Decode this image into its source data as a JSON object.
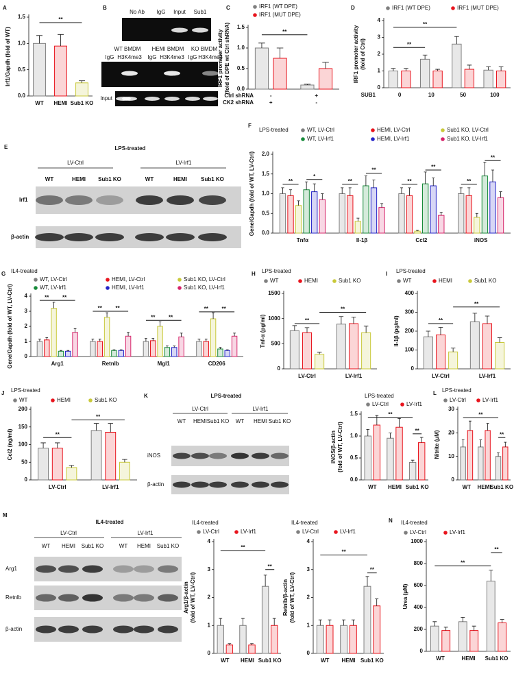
{
  "chart_data": [
    {
      "type": "bar",
      "panel": "A",
      "ylabel": [
        "Irf1/Gapdh (fold of WT)"
      ],
      "categories": [
        "WT",
        "HEMI",
        "Sub1 KO"
      ],
      "values": [
        1.0,
        0.95,
        0.25
      ],
      "errors": [
        0.15,
        0.22,
        0.04
      ],
      "colors": [
        "#7f7f7f",
        "#e8141d",
        "#c9c93a"
      ],
      "ylim": [
        0,
        1.5
      ],
      "yticks": [
        {
          "value": 0,
          "label": "0.0"
        },
        0.5,
        {
          "value": 1,
          "label": "1.0"
        },
        1.5
      ],
      "annotations": [
        "**"
      ]
    },
    {
      "type": "bar",
      "panel": "C",
      "ylabel": [
        "IRF1 promoter activity",
        "(fold of DPE wt Ctrl shRNA)"
      ],
      "categories": [
        null,
        null
      ],
      "x_rows": [
        {
          "label": "Ctrl shRNA",
          "marks": [
            "-",
            "+"
          ]
        },
        {
          "label": "CK2 shRNA",
          "marks": [
            "+",
            "-"
          ]
        }
      ],
      "series": [
        {
          "name": "IRF1 (WT DPE)",
          "color": "#7f7f7f",
          "values": [
            1.0,
            0.1
          ],
          "errors": [
            0.12,
            0.02
          ]
        },
        {
          "name": "IRF1 (MUT DPE)",
          "color": "#e8141d",
          "values": [
            0.75,
            0.5
          ],
          "errors": [
            0.25,
            0.15
          ]
        }
      ],
      "ylim": [
        0,
        1.5
      ],
      "yticks": [
        {
          "value": 0,
          "label": "0.0"
        },
        0.5,
        {
          "value": 1,
          "label": "1.0"
        },
        1.5
      ],
      "annotations": [
        "**"
      ]
    },
    {
      "type": "bar",
      "panel": "D",
      "ylabel": [
        "IRF1 promoter activity",
        "(fold of Ctrl)"
      ],
      "xlabel": "SUB1",
      "categories": [
        "0",
        "10",
        "50",
        "100"
      ],
      "series": [
        {
          "name": "IRF1 (WT DPE)",
          "color": "#7f7f7f",
          "values": [
            1.0,
            1.7,
            2.6,
            1.05
          ],
          "errors": [
            0.15,
            0.25,
            0.45,
            0.2
          ]
        },
        {
          "name": "IRF1 (MUT DPE)",
          "color": "#e8141d",
          "values": [
            1.0,
            1.0,
            1.1,
            1.0
          ],
          "errors": [
            0.15,
            0.1,
            0.25,
            0.25
          ]
        }
      ],
      "ylim": [
        0,
        4
      ],
      "yticks": [
        0,
        1,
        2,
        3,
        4
      ],
      "annotations": [
        "**",
        "**"
      ]
    },
    {
      "type": "bar",
      "panel": "F",
      "title": "LPS-treated",
      "ylabel": [
        "Gene/Gapdh (fold of WT, LV-Ctrl)"
      ],
      "categories": [
        "Tnfα",
        "Il-1β",
        "Ccl2",
        "iNOS"
      ],
      "series": [
        {
          "name": "WT, LV-Ctrl",
          "color": "#7f7f7f",
          "values": [
            1.0,
            1.0,
            1.0,
            1.0
          ],
          "errors": [
            0.15,
            0.15,
            0.15,
            0.15
          ]
        },
        {
          "name": "HEMI, LV-Ctrl",
          "color": "#e8141d",
          "values": [
            0.95,
            0.95,
            0.95,
            0.95
          ],
          "errors": [
            0.15,
            0.2,
            0.2,
            0.2
          ]
        },
        {
          "name": "Sub1 KO, LV-Ctrl",
          "color": "#c9c93a",
          "values": [
            0.7,
            0.3,
            0.05,
            0.4
          ],
          "errors": [
            0.12,
            0.08,
            0.02,
            0.1
          ]
        },
        {
          "name": "WT, LV-Irf1",
          "color": "#178a3a",
          "values": [
            1.1,
            1.2,
            1.25,
            1.45
          ],
          "errors": [
            0.2,
            0.25,
            0.3,
            0.35
          ]
        },
        {
          "name": "HEMI, LV-Irf1",
          "color": "#2424c8",
          "values": [
            1.05,
            1.15,
            1.2,
            1.3
          ],
          "errors": [
            0.2,
            0.2,
            0.2,
            0.3
          ]
        },
        {
          "name": "Sub1 KO, LV-Irf1",
          "color": "#d6246a",
          "values": [
            0.85,
            0.65,
            0.45,
            0.9
          ],
          "errors": [
            0.15,
            0.1,
            0.08,
            0.15
          ]
        }
      ],
      "ylim": [
        0,
        2
      ],
      "yticks": [
        {
          "value": 0,
          "label": "0.0"
        },
        0.5,
        {
          "value": 1,
          "label": "1.0"
        },
        1.5,
        {
          "value": 2,
          "label": "2.0"
        }
      ],
      "annotations": [
        "**",
        "*",
        "**",
        "**",
        "**",
        "**",
        "**",
        "**"
      ]
    },
    {
      "type": "bar",
      "panel": "G",
      "title": "IL4-treated",
      "ylabel": [
        "Gene/Gapdh (fold of WT, LV-Ctrl)"
      ],
      "categories": [
        "Arg1",
        "Retnlb",
        "Mgl1",
        "CD206"
      ],
      "series": [
        {
          "name": "WT, LV-Ctrl",
          "color": "#7f7f7f",
          "values": [
            1.0,
            1.0,
            1.0,
            1.0
          ],
          "errors": [
            0.15,
            0.15,
            0.2,
            0.15
          ]
        },
        {
          "name": "HEMI, LV-Ctrl",
          "color": "#e8141d",
          "values": [
            1.1,
            1.0,
            1.05,
            1.0
          ],
          "errors": [
            0.15,
            0.15,
            0.15,
            0.15
          ]
        },
        {
          "name": "Sub1 KO, LV-Ctrl",
          "color": "#c9c93a",
          "values": [
            3.2,
            2.6,
            2.0,
            2.5
          ],
          "errors": [
            0.4,
            0.3,
            0.3,
            0.4
          ]
        },
        {
          "name": "WT, LV-Irf1",
          "color": "#178a3a",
          "values": [
            0.35,
            0.4,
            0.6,
            0.5
          ],
          "errors": [
            0.05,
            0.05,
            0.1,
            0.1
          ]
        },
        {
          "name": "HEMI, LV-Irf1",
          "color": "#2424c8",
          "values": [
            0.35,
            0.4,
            0.6,
            0.4
          ],
          "errors": [
            0.05,
            0.05,
            0.1,
            0.05
          ]
        },
        {
          "name": "Sub1 KO, LV-Irf1",
          "color": "#d6246a",
          "values": [
            1.6,
            1.35,
            1.3,
            1.35
          ],
          "errors": [
            0.25,
            0.25,
            0.25,
            0.2
          ]
        }
      ],
      "ylim": [
        0,
        4
      ],
      "yticks": [
        0,
        1,
        2,
        3,
        4
      ],
      "annotations": [
        "**",
        "**",
        "**",
        "**",
        "**",
        "**",
        "**",
        "**"
      ]
    },
    {
      "type": "bar",
      "panel": "H",
      "title": "LPS-treated",
      "ylabel": [
        "Tnf-α (pg/ml)"
      ],
      "categories": [
        "LV-Ctrl",
        "LV-Irf1"
      ],
      "series": [
        {
          "name": "WT",
          "color": "#7f7f7f",
          "values": [
            760,
            890
          ],
          "errors": [
            100,
            150
          ]
        },
        {
          "name": "HEMI",
          "color": "#e8141d",
          "values": [
            720,
            900
          ],
          "errors": [
            100,
            130
          ]
        },
        {
          "name": "Sub1 KO",
          "color": "#c9c93a",
          "values": [
            290,
            720
          ],
          "errors": [
            40,
            130
          ]
        }
      ],
      "ylim": [
        0,
        1500
      ],
      "yticks": [
        0,
        500,
        1000,
        1500
      ],
      "annotations": [
        "**",
        "**"
      ]
    },
    {
      "type": "bar",
      "panel": "I",
      "title": "LPS-treated",
      "ylabel": [
        "Il-1β (pg/ml)"
      ],
      "categories": [
        "LV-Ctrl",
        "LV-Irf1"
      ],
      "series": [
        {
          "name": "WT",
          "color": "#7f7f7f",
          "values": [
            170,
            250
          ],
          "errors": [
            30,
            45
          ]
        },
        {
          "name": "HEMI",
          "color": "#e8141d",
          "values": [
            180,
            240
          ],
          "errors": [
            40,
            40
          ]
        },
        {
          "name": "Sub1 KO",
          "color": "#c9c93a",
          "values": [
            90,
            140
          ],
          "errors": [
            20,
            25
          ]
        }
      ],
      "ylim": [
        0,
        400
      ],
      "yticks": [
        0,
        100,
        200,
        300,
        400
      ],
      "annotations": [
        "**",
        "**"
      ]
    },
    {
      "type": "bar",
      "panel": "J",
      "title": "LPS-treated",
      "ylabel": [
        "Ccl2 (ng/ml)"
      ],
      "categories": [
        "LV-Ctrl",
        "LV-Irf1"
      ],
      "series": [
        {
          "name": "WT",
          "color": "#7f7f7f",
          "values": [
            90,
            140
          ],
          "errors": [
            15,
            20
          ]
        },
        {
          "name": "HEMI",
          "color": "#e8141d",
          "values": [
            90,
            135
          ],
          "errors": [
            15,
            25
          ]
        },
        {
          "name": "Sub1 KO",
          "color": "#c9c93a",
          "values": [
            35,
            50
          ],
          "errors": [
            6,
            8
          ]
        }
      ],
      "ylim": [
        0,
        200
      ],
      "yticks": [
        0,
        50,
        100,
        150,
        200
      ],
      "annotations": [
        "**",
        "**"
      ]
    },
    {
      "type": "bar",
      "title": "LPS-treated",
      "ylabel": [
        "iNOS/β-actin",
        "(fold of WT, LV-Ctrl)"
      ],
      "categories": [
        "WT",
        "HEMI",
        "Sub1 KO"
      ],
      "series": [
        {
          "name": "LV-Ctrl",
          "color": "#7f7f7f",
          "values": [
            1.0,
            0.95,
            0.4
          ],
          "errors": [
            0.15,
            0.12,
            0.05
          ]
        },
        {
          "name": "LV-Irf1",
          "color": "#e8141d",
          "values": [
            1.25,
            1.2,
            0.85
          ],
          "errors": [
            0.22,
            0.2,
            0.12
          ]
        }
      ],
      "ylim": [
        0,
        1.5
      ],
      "yticks": [
        {
          "value": 0,
          "label": "0.0"
        },
        0.5,
        {
          "value": 1,
          "label": "1.0"
        },
        1.5
      ],
      "annotations": [
        "**",
        "**"
      ]
    },
    {
      "type": "bar",
      "panel": "L",
      "title": "LPS-treated",
      "ylabel": [
        "Nitrite (μM)"
      ],
      "categories": [
        "WT",
        "HEMI",
        "Sub1 KO"
      ],
      "series": [
        {
          "name": "LV-Ctrl",
          "color": "#7f7f7f",
          "values": [
            14,
            14,
            10
          ],
          "errors": [
            3,
            3,
            1.5
          ]
        },
        {
          "name": "LV-Irf1",
          "color": "#e8141d",
          "values": [
            21,
            21,
            14
          ],
          "errors": [
            4,
            3,
            2
          ]
        }
      ],
      "ylim": [
        0,
        30
      ],
      "yticks": [
        0,
        10,
        20,
        30
      ],
      "annotations": [
        "**",
        "**"
      ]
    },
    {
      "type": "bar",
      "title": "IL4-treated",
      "ylabel": [
        "Arg1/β-actin",
        "(fold of WT, LV-Ctrl)"
      ],
      "categories": [
        "WT",
        "HEMI",
        "Sub1 KO"
      ],
      "series": [
        {
          "name": "LV-Ctrl",
          "color": "#7f7f7f",
          "values": [
            1.0,
            1.0,
            2.4
          ],
          "errors": [
            0.25,
            0.25,
            0.4
          ]
        },
        {
          "name": "LV-Irf1",
          "color": "#e8141d",
          "values": [
            0.3,
            0.3,
            1.0
          ],
          "errors": [
            0.05,
            0.05,
            0.25
          ]
        }
      ],
      "ylim": [
        0,
        4
      ],
      "yticks": [
        0,
        1,
        2,
        3,
        4
      ],
      "annotations": [
        "**",
        "**"
      ]
    },
    {
      "type": "bar",
      "title": "IL4-treated",
      "ylabel": [
        "Retnlb/β-actin",
        "(fold of WT, LV-Ctrl)"
      ],
      "categories": [
        "WT",
        "HEMI",
        "Sub1 KO"
      ],
      "series": [
        {
          "name": "LV-Ctrl",
          "color": "#7f7f7f",
          "values": [
            1.0,
            1.0,
            2.4
          ],
          "errors": [
            0.2,
            0.2,
            0.35
          ]
        },
        {
          "name": "LV-Irf1",
          "color": "#e8141d",
          "values": [
            1.0,
            1.0,
            1.7
          ],
          "errors": [
            0.2,
            0.2,
            0.25
          ]
        }
      ],
      "ylim": [
        0,
        4
      ],
      "yticks": [
        0,
        1,
        2,
        3,
        4
      ],
      "annotations": [
        "**",
        "**"
      ]
    },
    {
      "type": "bar",
      "panel": "N",
      "title": "IL4-treated",
      "ylabel": [
        "Urea (μM)"
      ],
      "categories": [
        "WT",
        "HEMI",
        "Sub1 KO"
      ],
      "series": [
        {
          "name": "LV-Ctrl",
          "color": "#7f7f7f",
          "values": [
            230,
            270,
            640
          ],
          "errors": [
            40,
            40,
            100
          ]
        },
        {
          "name": "LV-Irf1",
          "color": "#e8141d",
          "values": [
            190,
            190,
            260
          ],
          "errors": [
            30,
            40,
            30
          ]
        }
      ],
      "ylim": [
        0,
        1000
      ],
      "yticks": [
        0,
        200,
        400,
        600,
        800,
        1000
      ],
      "annotations": [
        "**",
        "**"
      ]
    }
  ],
  "blots": {
    "B": {
      "panel": "B",
      "top_lanes": [
        "No Ab",
        "IgG",
        "Input",
        "Sub1"
      ],
      "groups": [
        "WT BMDM",
        "HEMI BMDM",
        "KO BMDM"
      ],
      "lanes": [
        "IgG",
        "H3K4me3",
        "IgG",
        "H3K4me3",
        "IgG",
        "H3K4me3"
      ],
      "rows": [
        "Input"
      ]
    },
    "E": {
      "panel": "E",
      "title": "LPS-treated",
      "groups": [
        "LV-Ctrl",
        "LV-Irf1"
      ],
      "lanes": [
        "WT",
        "HEMI",
        "Sub1 KO",
        "WT",
        "HEMI",
        "Sub1 KO"
      ],
      "rows": [
        "Irf1",
        "β-actin"
      ]
    },
    "K": {
      "panel": "K",
      "title": "LPS-treated",
      "groups": [
        "LV-Ctrl",
        "LV-Irf1"
      ],
      "lanes": [
        "WT",
        "HEMI",
        "Sub1 KO",
        "WT",
        "HEMI",
        "Sub1 KO"
      ],
      "rows": [
        "iNOS",
        "β-actin"
      ]
    },
    "M": {
      "panel": "M",
      "title": "IL4-treated",
      "groups": [
        "LV-Ctrl",
        "LV-Irf1"
      ],
      "lanes": [
        "WT",
        "HEMI",
        "Sub1 KO",
        "WT",
        "HEMI",
        "Sub1 KO"
      ],
      "rows": [
        "Arg1",
        "Retnlb",
        "β-actin"
      ]
    }
  }
}
